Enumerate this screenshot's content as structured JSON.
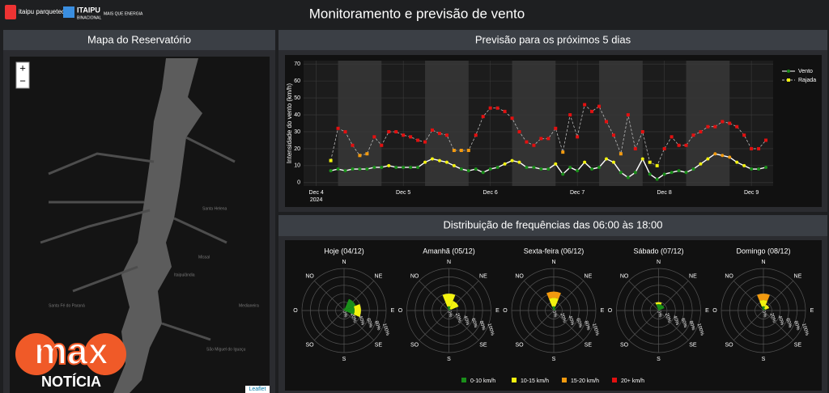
{
  "header": {
    "title": "Monitoramento e previsão de vento",
    "logo1": "itaipu parquetec",
    "logo2": "ITAIPU",
    "logo2_sub": "BINACIONAL",
    "logo3": "MAIS QUE ENERGIA"
  },
  "map": {
    "title": "Mapa do Reservatório",
    "zoom_in": "+",
    "zoom_out": "−",
    "attribution": "Leaflet",
    "labels": [
      "Missal",
      "Itaipulândia",
      "Medianeira",
      "Santa Fé do Paraná",
      "São Miguel do Iguaçu",
      "Santa Helena"
    ]
  },
  "watermark": {
    "brand": "max",
    "sub": "NOTÍCIA"
  },
  "forecast": {
    "type": "line",
    "title": "Previsão para os próximos 5 dias",
    "y_label": "Intensidade do vento (km/h)",
    "x": [
      4,
      6,
      8,
      10,
      12,
      14,
      16,
      18,
      20,
      22,
      24,
      26,
      28,
      30,
      32,
      34,
      36,
      38,
      40,
      42,
      44,
      46,
      48,
      50,
      52,
      54,
      56,
      58,
      60,
      62,
      64,
      66,
      68,
      70,
      72,
      74,
      76,
      78,
      80,
      82,
      84,
      86,
      88,
      90,
      92,
      94,
      96,
      98,
      100,
      102,
      104,
      106,
      108,
      110,
      112,
      114,
      116,
      118,
      120,
      122,
      124
    ],
    "xlim": [
      -3.5,
      126
    ],
    "xticks": [
      {
        "value": 0,
        "label": "Dec 4"
      },
      {
        "value": 24,
        "label": "Dec 5"
      },
      {
        "value": 48,
        "label": "Dec 6"
      },
      {
        "value": 72,
        "label": "Dec 7"
      },
      {
        "value": 96,
        "label": "Dec 8"
      },
      {
        "value": 120,
        "label": "Dec 9"
      }
    ],
    "xtick_year": "2024",
    "ylim": [
      -2,
      72
    ],
    "yticks": [
      0,
      10,
      20,
      30,
      40,
      50,
      60,
      70
    ],
    "day_periods": [
      [
        6,
        18
      ],
      [
        30,
        42
      ],
      [
        54,
        66
      ],
      [
        78,
        90
      ],
      [
        102,
        114
      ]
    ],
    "series": [
      {
        "name": "Vento",
        "color": "#ffffff",
        "values": [
          7,
          8,
          7,
          8,
          8,
          8,
          9,
          9,
          10,
          9,
          9,
          9,
          9,
          12,
          14,
          13,
          12,
          10,
          8,
          7,
          8,
          6,
          8,
          9,
          11,
          13,
          12,
          9,
          9,
          8,
          8,
          11,
          5,
          9,
          7,
          12,
          8,
          9,
          14,
          12,
          6,
          3,
          6,
          14,
          5,
          2,
          5,
          6,
          7,
          6,
          8,
          11,
          14,
          17,
          16,
          15,
          12,
          10,
          8,
          8,
          9
        ]
      },
      {
        "name": "Rajada",
        "color": "#bbbbbb",
        "values": [
          13,
          32,
          30,
          22,
          16,
          17,
          27,
          22,
          30,
          30,
          28,
          27,
          25,
          24,
          31,
          29,
          28,
          19,
          19,
          19,
          28,
          39,
          44,
          44,
          42,
          38,
          30,
          24,
          22,
          26,
          26,
          32,
          18,
          40,
          27,
          46,
          42,
          45,
          36,
          28,
          17,
          40,
          20,
          30,
          12,
          10,
          20,
          27,
          22,
          22,
          28,
          30,
          33,
          33,
          36,
          35,
          33,
          28,
          20,
          20,
          25
        ]
      }
    ]
  },
  "roses": {
    "title": "Distribuição de frequências das 06:00 às 18:00",
    "directions": [
      "N",
      "NE",
      "E",
      "SE",
      "S",
      "SO",
      "O",
      "NO"
    ],
    "rlim": [
      0,
      100
    ],
    "rticks": [
      {
        "value": 0,
        "label": "0%"
      },
      {
        "value": 20,
        "label": "20%"
      },
      {
        "value": 40,
        "label": "40%"
      },
      {
        "value": 60,
        "label": "60%"
      },
      {
        "value": 80,
        "label": "80%"
      },
      {
        "value": 100,
        "label": "100%"
      }
    ],
    "bins": [
      {
        "label": "0-10 km/h",
        "min": 0,
        "color": "#1a8f1a"
      },
      {
        "label": "10-15 km/h",
        "min": 10,
        "color": "#f2f20f"
      },
      {
        "label": "15-20 km/h",
        "min": 15,
        "color": "#f29a0f"
      },
      {
        "label": "20+ km/h",
        "min": 20,
        "color": "#e31010"
      }
    ],
    "charts": [
      {
        "title": "Hoje (04/12)",
        "series": [
          [
            5,
            30,
            25,
            0,
            0,
            0,
            0,
            0
          ],
          [
            0,
            0,
            15,
            0,
            0,
            0,
            0,
            0
          ],
          [
            0,
            0,
            0,
            0,
            0,
            0,
            0,
            0
          ],
          [
            0,
            0,
            0,
            0,
            0,
            0,
            0,
            0
          ]
        ]
      },
      {
        "title": "Amanhã (05/12)",
        "series": [
          [
            10,
            5,
            0,
            0,
            0,
            0,
            0,
            0
          ],
          [
            30,
            20,
            0,
            0,
            0,
            0,
            0,
            0
          ],
          [
            0,
            0,
            0,
            0,
            0,
            0,
            0,
            0
          ],
          [
            0,
            0,
            0,
            0,
            0,
            0,
            0,
            0
          ]
        ]
      },
      {
        "title": "Sexta-feira (06/12)",
        "series": [
          [
            10,
            5,
            0,
            0,
            0,
            0,
            0,
            0
          ],
          [
            20,
            0,
            0,
            0,
            0,
            0,
            0,
            0
          ],
          [
            15,
            0,
            0,
            0,
            0,
            0,
            0,
            0
          ],
          [
            0,
            0,
            0,
            0,
            0,
            0,
            0,
            0
          ]
        ]
      },
      {
        "title": "Sábado (07/12)",
        "series": [
          [
            15,
            15,
            0,
            0,
            0,
            0,
            0,
            0
          ],
          [
            5,
            0,
            0,
            0,
            0,
            0,
            0,
            0
          ],
          [
            0,
            0,
            0,
            0,
            0,
            0,
            0,
            0
          ],
          [
            0,
            0,
            0,
            0,
            0,
            0,
            0,
            0
          ]
        ]
      },
      {
        "title": "Domingo (08/12)",
        "series": [
          [
            10,
            5,
            0,
            0,
            0,
            0,
            0,
            0
          ],
          [
            15,
            10,
            0,
            0,
            0,
            0,
            0,
            0
          ],
          [
            15,
            0,
            0,
            0,
            0,
            0,
            0,
            0
          ],
          [
            0,
            0,
            0,
            0,
            0,
            0,
            0,
            0
          ]
        ]
      }
    ]
  }
}
